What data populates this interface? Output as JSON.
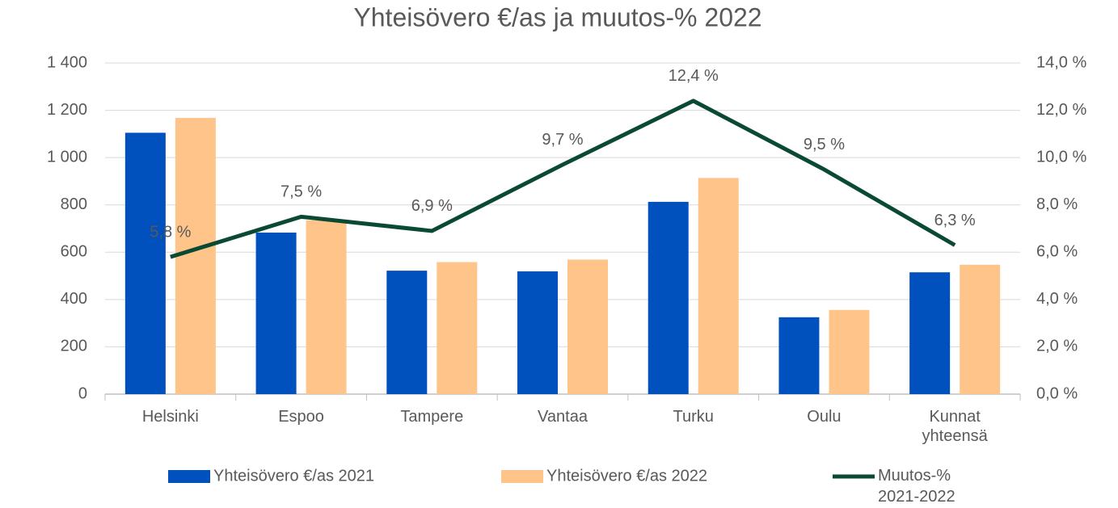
{
  "chart_data": {
    "type": "bar",
    "title": "Yhteisövero €/as ja muutos-% 2022",
    "categories": [
      "Helsinki",
      "Espoo",
      "Tampere",
      "Vantaa",
      "Turku",
      "Oulu",
      "Kunnat yhteensä"
    ],
    "series": [
      {
        "name": "Yhteisövero €/as 2021",
        "color": "#0050be",
        "type": "bar",
        "values": [
          1105,
          683,
          522,
          519,
          813,
          325,
          515
        ]
      },
      {
        "name": "Yhteisövero €/as 2022",
        "color": "#ffc48a",
        "type": "bar",
        "values": [
          1168,
          735,
          558,
          569,
          914,
          356,
          547
        ]
      },
      {
        "name": "Muutos-% 2021-2022",
        "color": "#0b4a32",
        "type": "line",
        "axis": "y2",
        "values": [
          5.8,
          7.5,
          6.9,
          9.7,
          12.4,
          9.5,
          6.3
        ],
        "value_labels": [
          "5,8 %",
          "7,5 %",
          "6,9 %",
          "9,7 %",
          "12,4 %",
          "9,5 %",
          "6,3 %"
        ]
      }
    ],
    "ylim": [
      0,
      1400
    ],
    "yticks": [
      0,
      200,
      400,
      600,
      800,
      {
        "value": 1000,
        "label": "1 000"
      },
      {
        "value": 1200,
        "label": "1 200"
      },
      {
        "value": 1400,
        "label": "1 400"
      }
    ],
    "y2lim": [
      0,
      14
    ],
    "y2ticks": [
      {
        "value": 0,
        "label": "0,0 %"
      },
      {
        "value": 2,
        "label": "2,0 %"
      },
      {
        "value": 4,
        "label": "4,0 %"
      },
      {
        "value": 6,
        "label": "6,0 %"
      },
      {
        "value": 8,
        "label": "8,0 %"
      },
      {
        "value": 10,
        "label": "10,0 %"
      },
      {
        "value": 12,
        "label": "12,0 %"
      },
      {
        "value": 14,
        "label": "14,0 %"
      }
    ],
    "grid": true,
    "legend": "bottom"
  }
}
